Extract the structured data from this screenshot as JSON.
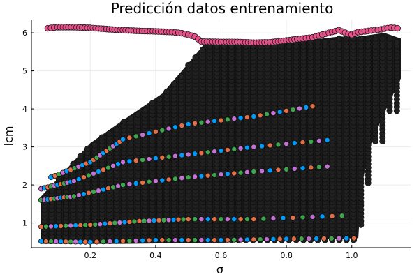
{
  "chart_data": {
    "type": "scatter",
    "title": "Predicción datos entrenamiento",
    "xlabel": "σ",
    "ylabel": "lcm",
    "xlim": [
      0.02,
      1.18
    ],
    "ylim": [
      0.35,
      6.35
    ],
    "x_ticks": [
      0.2,
      0.4,
      0.6,
      0.8,
      1.0
    ],
    "x_tick_labels": [
      "0.2",
      "0.4",
      "0.6",
      "0.8",
      "1.0"
    ],
    "y_ticks": [
      1,
      2,
      3,
      4,
      5,
      6
    ],
    "y_tick_labels": [
      "1",
      "2",
      "3",
      "4",
      "5",
      "6"
    ],
    "grid": true,
    "legend": "none",
    "marker": "circle",
    "dense_fill_color": "#1a1a1a",
    "band_marker_colors": [
      "#009AFA",
      "#E36F47",
      "#3EA44E",
      "#C371D2"
    ],
    "top_series_color": "#E8508A",
    "grid_color": "#ececec",
    "top_curve": {
      "x": [
        0.07,
        0.1,
        0.15,
        0.2,
        0.25,
        0.3,
        0.35,
        0.4,
        0.45,
        0.48,
        0.5,
        0.52,
        0.54,
        0.6,
        0.65,
        0.7,
        0.75,
        0.8,
        0.85,
        0.88,
        0.9,
        0.93,
        0.96,
        0.99,
        1.0,
        1.02,
        1.05,
        1.08,
        1.1,
        1.12,
        1.14
      ],
      "y": [
        6.12,
        6.15,
        6.15,
        6.13,
        6.1,
        6.07,
        6.05,
        6.04,
        6.02,
        5.99,
        5.95,
        5.9,
        5.77,
        5.76,
        5.76,
        5.74,
        5.75,
        5.8,
        5.85,
        5.88,
        5.93,
        6.0,
        6.07,
        5.97,
        5.95,
        6.02,
        6.05,
        6.08,
        6.11,
        6.14,
        6.12
      ]
    },
    "band_bottoms": [
      {
        "x": [
          0.05,
          0.2,
          0.4,
          0.6,
          0.8,
          1.03
        ],
        "y": [
          0.52,
          0.5,
          0.55,
          0.55,
          0.58,
          0.6
        ]
      },
      {
        "x": [
          0.05,
          0.2,
          0.35,
          0.5,
          0.7,
          1.0
        ],
        "y": [
          0.9,
          0.95,
          1.05,
          1.1,
          1.1,
          1.2
        ]
      },
      {
        "x": [
          0.05,
          0.15,
          0.3,
          0.5,
          0.7,
          0.95
        ],
        "y": [
          1.6,
          1.7,
          2.0,
          2.2,
          2.35,
          2.5
        ]
      },
      {
        "x": [
          0.05,
          0.15,
          0.3,
          0.5,
          0.7,
          0.95
        ],
        "y": [
          1.9,
          2.1,
          2.6,
          2.8,
          3.0,
          3.2
        ]
      },
      {
        "x": [
          0.08,
          0.2,
          0.3,
          0.5,
          0.7,
          0.9
        ],
        "y": [
          2.2,
          2.6,
          3.2,
          3.6,
          3.8,
          4.1
        ]
      }
    ]
  }
}
